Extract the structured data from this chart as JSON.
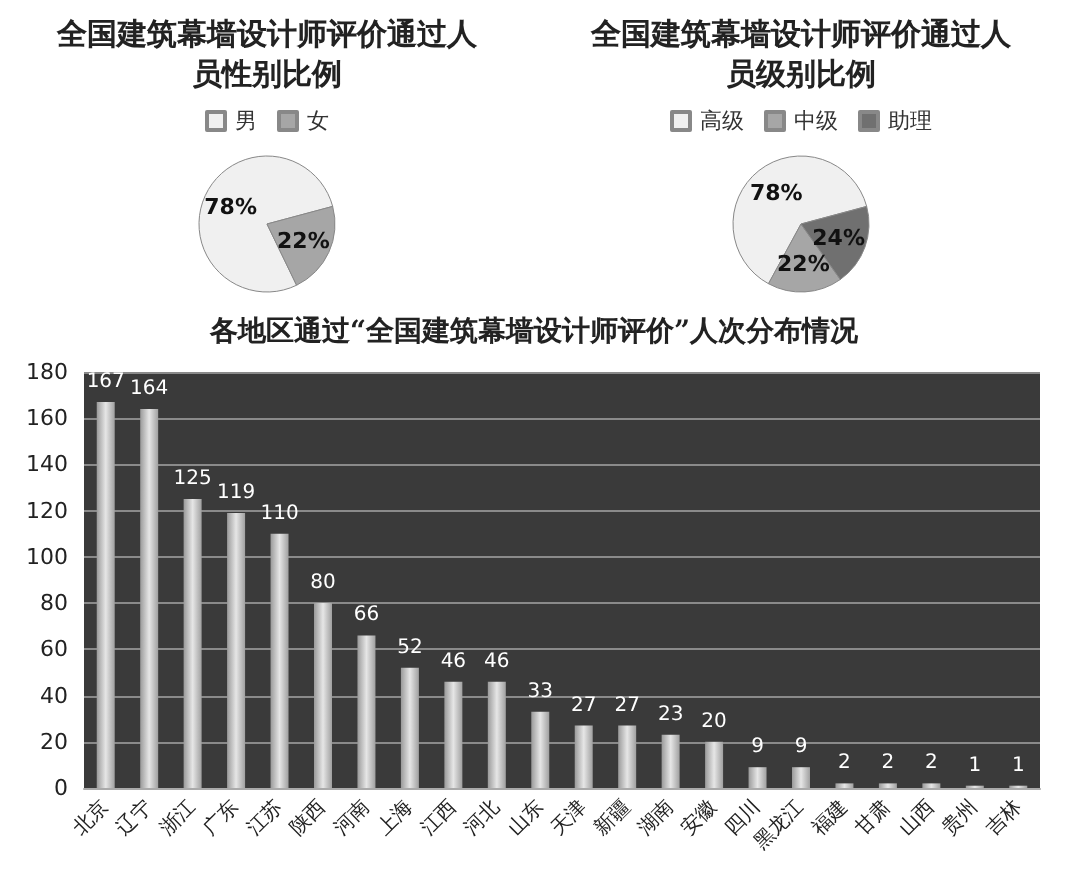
{
  "chart_data": [
    {
      "type": "pie",
      "title": "全国建筑幕墙设计师评价通过人员性别比例",
      "categories": [
        "男",
        "女"
      ],
      "values": [
        78,
        22
      ],
      "value_labels": [
        "78%",
        "22%"
      ],
      "colors": [
        "#f0f0f0",
        "#a6a6a6"
      ],
      "legend": "top"
    },
    {
      "type": "pie",
      "title": "全国建筑幕墙设计师评价通过人员级别比例",
      "categories": [
        "高级",
        "中级",
        "助理"
      ],
      "values": [
        78,
        22,
        24
      ],
      "value_labels": [
        "78%",
        "22%",
        "24%"
      ],
      "colors": [
        "#f0f0f0",
        "#a6a6a6",
        "#707070"
      ],
      "legend": "top"
    },
    {
      "type": "bar",
      "title": "各地区通过“全国建筑幕墙设计师评价”人次分布情况",
      "categories": [
        "北京",
        "辽宁",
        "浙江",
        "广东",
        "江苏",
        "陕西",
        "河南",
        "上海",
        "江西",
        "河北",
        "山东",
        "天津",
        "新疆",
        "湖南",
        "安徽",
        "四川",
        "黑龙江",
        "福建",
        "甘肃",
        "山西",
        "贵州",
        "吉林"
      ],
      "values": [
        167,
        164,
        125,
        119,
        110,
        80,
        66,
        52,
        46,
        46,
        33,
        27,
        27,
        23,
        20,
        9,
        9,
        2,
        2,
        2,
        1,
        1
      ],
      "color": "#e6e6e6",
      "ylim": [
        0,
        180
      ],
      "yticks": [
        0,
        20,
        40,
        60,
        80,
        100,
        120,
        140,
        160,
        180
      ],
      "grid": "y",
      "data_labels": true,
      "legend": false
    }
  ]
}
